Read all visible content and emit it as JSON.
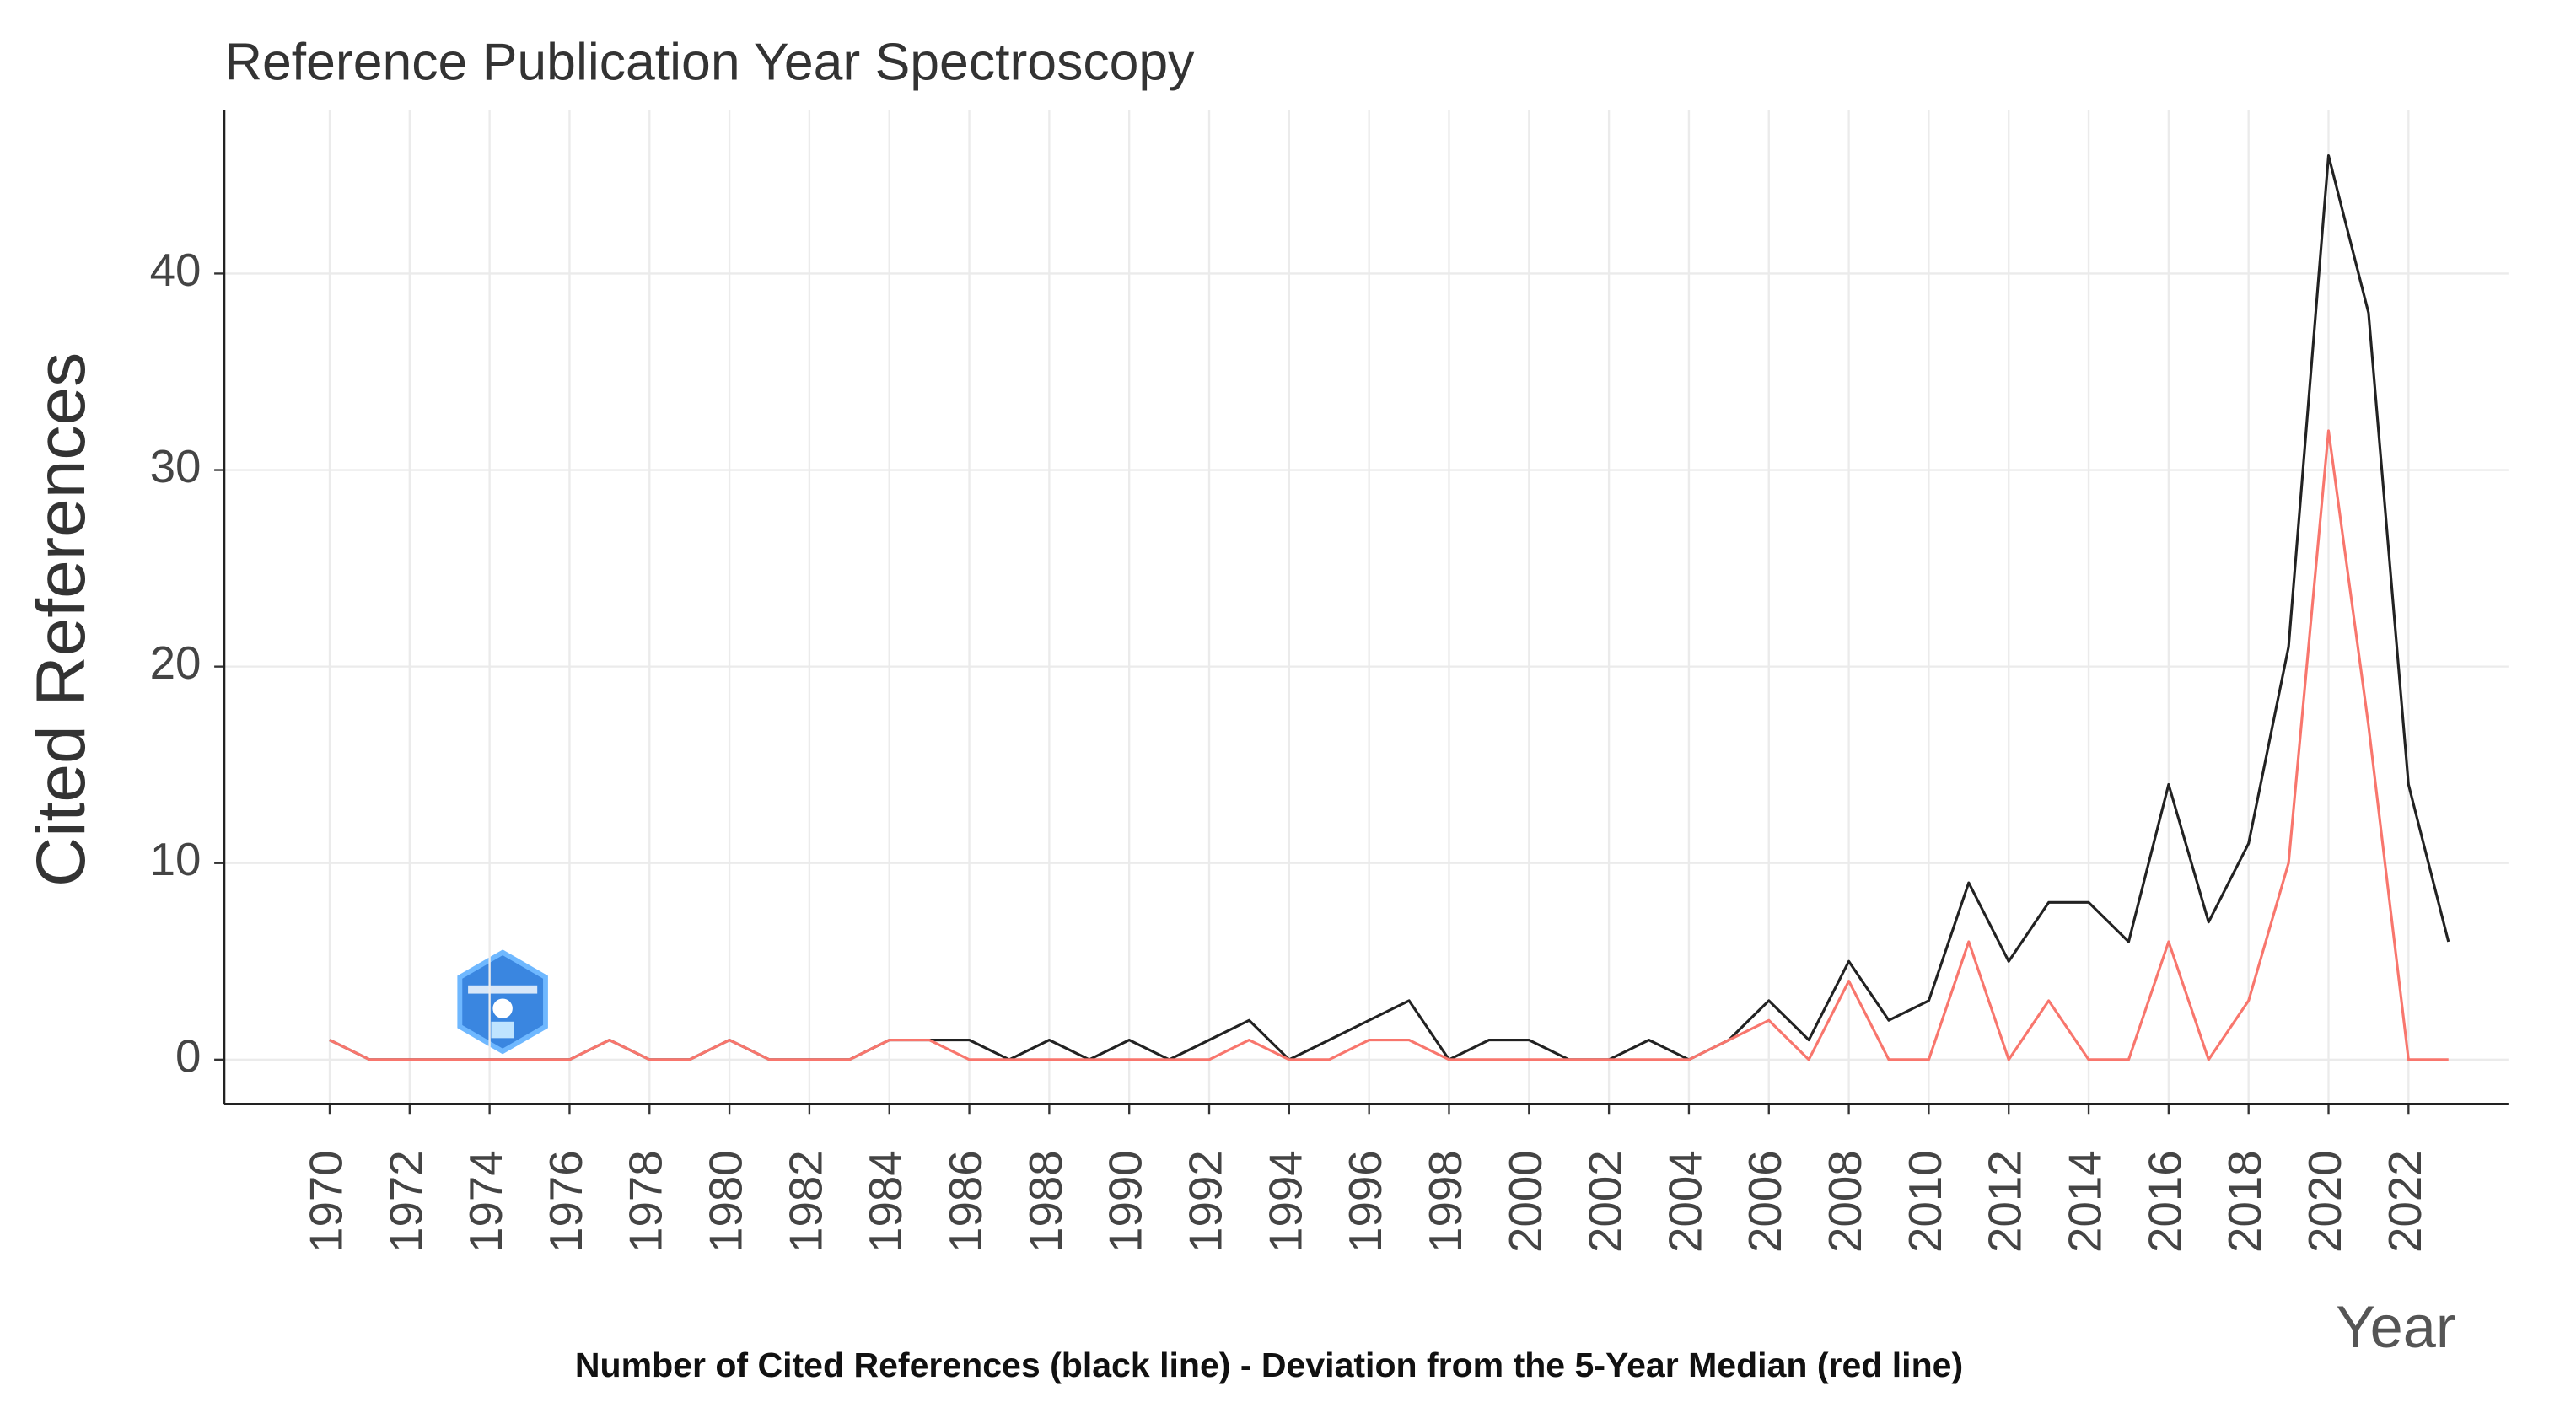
{
  "chart_data": {
    "type": "line",
    "title": "Reference Publication Year Spectroscopy",
    "x_label": "Year",
    "y_label": "Cited References",
    "caption": "Number of Cited References (black line) - Deviation from the 5-Year Median (red line)",
    "x": [
      1970,
      1971,
      1972,
      1973,
      1974,
      1975,
      1976,
      1977,
      1978,
      1979,
      1980,
      1981,
      1982,
      1983,
      1984,
      1985,
      1986,
      1987,
      1988,
      1989,
      1990,
      1991,
      1992,
      1993,
      1994,
      1995,
      1996,
      1997,
      1998,
      1999,
      2000,
      2001,
      2002,
      2003,
      2004,
      2005,
      2006,
      2007,
      2008,
      2009,
      2010,
      2011,
      2012,
      2013,
      2014,
      2015,
      2016,
      2017,
      2018,
      2019,
      2020,
      2021,
      2022,
      2023
    ],
    "series": [
      {
        "color": "#222222",
        "values": [
          1,
          0,
          0,
          0,
          0,
          0,
          0,
          1,
          0,
          0,
          1,
          0,
          0,
          0,
          1,
          1,
          1,
          0,
          1,
          0,
          1,
          0,
          1,
          2,
          0,
          1,
          2,
          3,
          0,
          1,
          1,
          0,
          0,
          1,
          0,
          1,
          3,
          1,
          5,
          2,
          3,
          9,
          5,
          8,
          8,
          6,
          14,
          7,
          11,
          21,
          46,
          38,
          14,
          6
        ]
      },
      {
        "color": "#f8766d",
        "values": [
          1,
          0,
          0,
          0,
          0,
          0,
          0,
          1,
          0,
          0,
          1,
          0,
          0,
          0,
          1,
          1,
          0,
          0,
          0,
          0,
          0,
          0,
          0,
          1,
          0,
          0,
          1,
          1,
          0,
          0,
          0,
          0,
          0,
          0,
          0,
          1,
          2,
          0,
          4,
          0,
          0,
          6,
          0,
          3,
          0,
          0,
          6,
          0,
          3,
          10,
          32,
          17,
          0,
          0
        ]
      }
    ],
    "xlim": [
      1967.36,
      2024.5
    ],
    "ylim": [
      -2.26,
      48.3
    ],
    "xticks": [
      1970,
      1972,
      1974,
      1976,
      1978,
      1980,
      1982,
      1984,
      1986,
      1988,
      1990,
      1992,
      1994,
      1996,
      1998,
      2000,
      2002,
      2004,
      2006,
      2008,
      2010,
      2012,
      2014,
      2016,
      2018,
      2020,
      2022
    ],
    "yticks": [
      0,
      10,
      20,
      30,
      40
    ],
    "grid": true
  }
}
